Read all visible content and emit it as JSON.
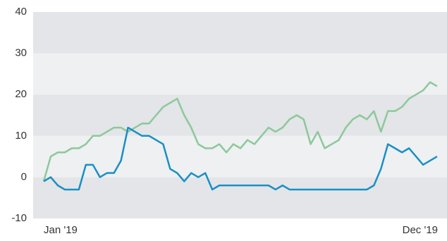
{
  "chart_data": {
    "type": "line",
    "categories": [
      "Jan '19",
      null,
      null,
      null,
      null,
      null,
      null,
      null,
      null,
      null,
      null,
      null,
      null,
      null,
      null,
      null,
      null,
      null,
      null,
      null,
      null,
      null,
      null,
      null,
      null,
      null,
      null,
      null,
      null,
      null,
      null,
      null,
      null,
      null,
      null,
      null,
      null,
      null,
      null,
      null,
      null,
      null,
      null,
      null,
      null,
      null,
      null,
      null,
      null,
      null,
      null,
      null,
      null,
      null,
      null,
      null,
      "Dec '19"
    ],
    "series": [
      {
        "color": "#8dc89a",
        "values": [
          -1,
          5,
          6,
          6,
          7,
          7,
          8,
          10,
          10,
          11,
          12,
          12,
          11,
          12,
          13,
          13,
          15,
          17,
          18,
          19,
          15,
          12,
          8,
          7,
          7,
          8,
          6,
          8,
          7,
          9,
          8,
          10,
          12,
          11,
          12,
          14,
          15,
          14,
          8,
          11,
          7,
          8,
          9,
          12,
          14,
          15,
          14,
          16,
          11,
          16,
          16,
          17,
          19,
          20,
          21,
          23,
          22
        ]
      },
      {
        "color": "#1a8fc4",
        "values": [
          -1,
          0,
          -2,
          -3,
          -3,
          -3,
          3,
          3,
          0,
          1,
          1,
          4,
          12,
          11,
          10,
          10,
          9,
          8,
          2,
          1,
          -1,
          1,
          0,
          1,
          -3,
          -2,
          -2,
          -2,
          -2,
          -2,
          -2,
          -2,
          -2,
          -3,
          -2,
          -3,
          -3,
          -3,
          -3,
          -3,
          -3,
          -3,
          -3,
          -3,
          -3,
          -3,
          -3,
          -2,
          2,
          8,
          7,
          6,
          7,
          5,
          3,
          4,
          5
        ]
      }
    ],
    "ylim": [
      -10,
      40
    ],
    "yticks": [
      -10,
      0,
      10,
      20,
      30,
      40
    ],
    "bands": [
      "#e3e5e8",
      "#eef0f2"
    ]
  }
}
